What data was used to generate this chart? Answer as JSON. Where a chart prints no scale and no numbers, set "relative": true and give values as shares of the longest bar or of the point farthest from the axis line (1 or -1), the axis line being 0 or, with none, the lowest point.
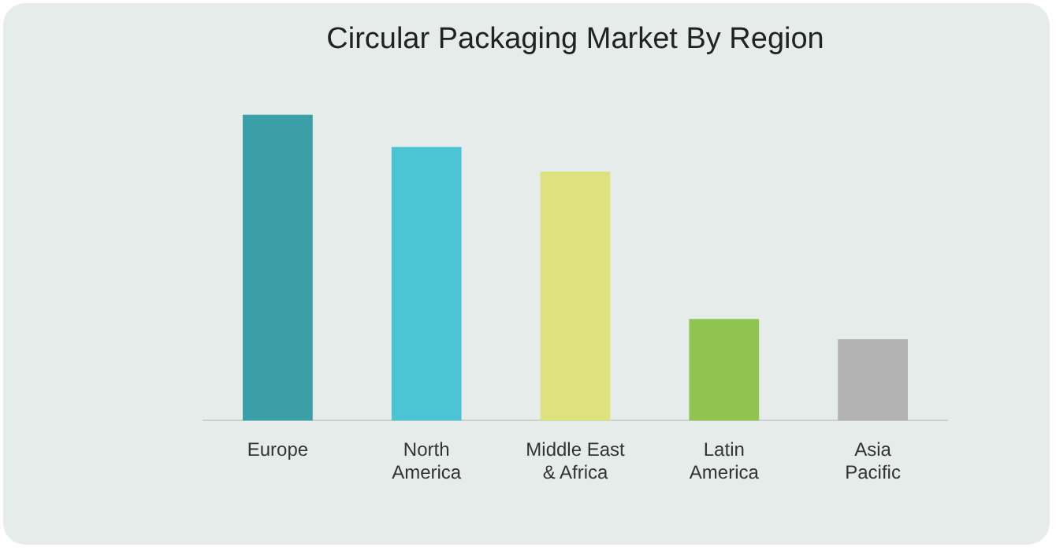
{
  "chart_data": {
    "type": "bar",
    "title": "Circular Packaging Market By Region",
    "relative": true,
    "categories": [
      "Europe",
      "North America",
      "Middle East & Africa",
      "Latin America",
      "Asia Pacific"
    ],
    "values": [
      1,
      0.894,
      0.814,
      0.332,
      0.266
    ],
    "colors": [
      "#3a9fa7",
      "#4bc5d3",
      "#dde17f",
      "#8fc450",
      "#b2b3b2"
    ]
  }
}
